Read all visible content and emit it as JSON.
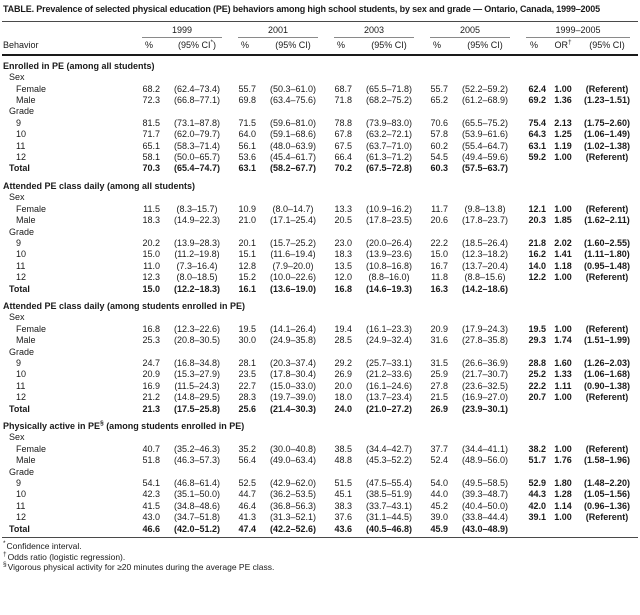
{
  "title": "TABLE. Prevalence of selected physical education (PE) behaviors among high school students, by sex and grade — Ontario, Canada, 1999–2005",
  "header": {
    "behavior_label": "Behavior",
    "year_groups": [
      {
        "label": "1999",
        "columns": [
          "%",
          "(95% CI*)"
        ]
      },
      {
        "label": "2001",
        "columns": [
          "%",
          "(95% CI)"
        ]
      },
      {
        "label": "2003",
        "columns": [
          "%",
          "(95% CI)"
        ]
      },
      {
        "label": "2005",
        "columns": [
          "%",
          "(95% CI)"
        ]
      },
      {
        "label": "1999–2005",
        "columns": [
          "%",
          "OR†",
          "(95% CI)"
        ]
      }
    ]
  },
  "sections": [
    {
      "heading": "Enrolled in PE (among all students)",
      "groups": [
        {
          "label": "Sex",
          "rows": [
            {
              "label": "Female",
              "cells": [
                "68.2",
                "(62.4–73.4)",
                "55.7",
                "(50.3–61.0)",
                "68.7",
                "(65.5–71.8)",
                "55.7",
                "(52.2–59.2)",
                "62.4",
                "1.00",
                "(Referent)"
              ]
            },
            {
              "label": "Male",
              "cells": [
                "72.3",
                "(66.8–77.1)",
                "69.8",
                "(63.4–75.6)",
                "71.8",
                "(68.2–75.2)",
                "65.2",
                "(61.2–68.9)",
                "69.2",
                "1.36",
                "(1.23–1.51)"
              ]
            }
          ]
        },
        {
          "label": "Grade",
          "rows": [
            {
              "label": "9",
              "cells": [
                "81.5",
                "(73.1–87.8)",
                "71.5",
                "(59.6–81.0)",
                "78.8",
                "(73.9–83.0)",
                "70.6",
                "(65.5–75.2)",
                "75.4",
                "2.13",
                "(1.75–2.60)"
              ]
            },
            {
              "label": "10",
              "cells": [
                "71.7",
                "(62.0–79.7)",
                "64.0",
                "(59.1–68.6)",
                "67.8",
                "(63.2–72.1)",
                "57.8",
                "(53.9–61.6)",
                "64.3",
                "1.25",
                "(1.06–1.49)"
              ]
            },
            {
              "label": "11",
              "cells": [
                "65.1",
                "(58.3–71.4)",
                "56.1",
                "(48.0–63.9)",
                "67.5",
                "(63.7–71.0)",
                "60.2",
                "(55.4–64.7)",
                "63.1",
                "1.19",
                "(1.02–1.38)"
              ]
            },
            {
              "label": "12",
              "cells": [
                "58.1",
                "(50.0–65.7)",
                "53.6",
                "(45.4–61.7)",
                "66.4",
                "(61.3–71.2)",
                "54.5",
                "(49.4–59.6)",
                "59.2",
                "1.00",
                "(Referent)"
              ]
            }
          ]
        }
      ],
      "total": {
        "label": "Total",
        "cells": [
          "70.3",
          "(65.4–74.7)",
          "63.1",
          "(58.2–67.7)",
          "70.2",
          "(67.5–72.8)",
          "60.3",
          "(57.5–63.7)",
          "",
          "",
          ""
        ]
      }
    },
    {
      "heading": "Attended PE class daily (among all students)",
      "groups": [
        {
          "label": "Sex",
          "rows": [
            {
              "label": "Female",
              "cells": [
                "11.5",
                "(8.3–15.7)",
                "10.9",
                "(8.0–14.7)",
                "13.3",
                "(10.9–16.2)",
                "11.7",
                "(9.8–13.8)",
                "12.1",
                "1.00",
                "(Referent)"
              ]
            },
            {
              "label": "Male",
              "cells": [
                "18.3",
                "(14.9–22.3)",
                "21.0",
                "(17.1–25.4)",
                "20.5",
                "(17.8–23.5)",
                "20.6",
                "(17.8–23.7)",
                "20.3",
                "1.85",
                "(1.62–2.11)"
              ]
            }
          ]
        },
        {
          "label": "Grade",
          "rows": [
            {
              "label": "9",
              "cells": [
                "20.2",
                "(13.9–28.3)",
                "20.1",
                "(15.7–25.2)",
                "23.0",
                "(20.0–26.4)",
                "22.2",
                "(18.5–26.4)",
                "21.8",
                "2.02",
                "(1.60–2.55)"
              ]
            },
            {
              "label": "10",
              "cells": [
                "15.0",
                "(11.2–19.8)",
                "15.1",
                "(11.6–19.4)",
                "18.3",
                "(13.9–23.6)",
                "15.0",
                "(12.3–18.2)",
                "16.2",
                "1.41",
                "(1.11–1.80)"
              ]
            },
            {
              "label": "11",
              "cells": [
                "11.0",
                "(7.3–16.4)",
                "12.8",
                "(7.9–20.0)",
                "13.5",
                "(10.8–16.8)",
                "16.7",
                "(13.7–20.4)",
                "14.0",
                "1.18",
                "(0.95–1.48)"
              ]
            },
            {
              "label": "12",
              "cells": [
                "12.3",
                "(8.0–18.5)",
                "15.2",
                "(10.0–22.6)",
                "12.0",
                "(8.8–16.0)",
                "11.8",
                "(8.8–15.6)",
                "12.2",
                "1.00",
                "(Referent)"
              ]
            }
          ]
        }
      ],
      "total": {
        "label": "Total",
        "cells": [
          "15.0",
          "(12.2–18.3)",
          "16.1",
          "(13.6–19.0)",
          "16.8",
          "(14.6–19.3)",
          "16.3",
          "(14.2–18.6)",
          "",
          "",
          ""
        ]
      }
    },
    {
      "heading": "Attended PE class daily (among students enrolled in PE)",
      "groups": [
        {
          "label": "Sex",
          "rows": [
            {
              "label": "Female",
              "cells": [
                "16.8",
                "(12.3–22.6)",
                "19.5",
                "(14.1–26.4)",
                "19.4",
                "(16.1–23.3)",
                "20.9",
                "(17.9–24.3)",
                "19.5",
                "1.00",
                "(Referent)"
              ]
            },
            {
              "label": "Male",
              "cells": [
                "25.3",
                "(20.8–30.5)",
                "30.0",
                "(24.9–35.8)",
                "28.5",
                "(24.9–32.4)",
                "31.6",
                "(27.8–35.8)",
                "29.3",
                "1.74",
                "(1.51–1.99)"
              ]
            }
          ]
        },
        {
          "label": "Grade",
          "rows": [
            {
              "label": "9",
              "cells": [
                "24.7",
                "(16.8–34.8)",
                "28.1",
                "(20.3–37.4)",
                "29.2",
                "(25.7–33.1)",
                "31.5",
                "(26.6–36.9)",
                "28.8",
                "1.60",
                "(1.26–2.03)"
              ]
            },
            {
              "label": "10",
              "cells": [
                "20.9",
                "(15.3–27.9)",
                "23.5",
                "(17.8–30.4)",
                "26.9",
                "(21.2–33.6)",
                "25.9",
                "(21.7–30.7)",
                "25.2",
                "1.33",
                "(1.06–1.68)"
              ]
            },
            {
              "label": "11",
              "cells": [
                "16.9",
                "(11.5–24.3)",
                "22.7",
                "(15.0–33.0)",
                "20.0",
                "(16.1–24.6)",
                "27.8",
                "(23.6–32.5)",
                "22.2",
                "1.11",
                "(0.90–1.38)"
              ]
            },
            {
              "label": "12",
              "cells": [
                "21.2",
                "(14.8–29.5)",
                "28.3",
                "(19.7–39.0)",
                "18.0",
                "(13.7–23.4)",
                "21.5",
                "(16.9–27.0)",
                "20.7",
                "1.00",
                "(Referent)"
              ]
            }
          ]
        }
      ],
      "total": {
        "label": "Total",
        "cells": [
          "21.3",
          "(17.5–25.8)",
          "25.6",
          "(21.4–30.3)",
          "24.0",
          "(21.0–27.2)",
          "26.9",
          "(23.9–30.1)",
          "",
          "",
          ""
        ]
      }
    },
    {
      "heading": "Physically active in PE§ (among students enrolled in PE)",
      "groups": [
        {
          "label": "Sex",
          "rows": [
            {
              "label": "Female",
              "cells": [
                "40.7",
                "(35.2–46.3)",
                "35.2",
                "(30.0–40.8)",
                "38.5",
                "(34.4–42.7)",
                "37.7",
                "(34.4–41.1)",
                "38.2",
                "1.00",
                "(Referent)"
              ]
            },
            {
              "label": "Male",
              "cells": [
                "51.8",
                "(46.3–57.3)",
                "56.4",
                "(49.0–63.4)",
                "48.8",
                "(45.3–52.2)",
                "52.4",
                "(48.9–56.0)",
                "51.7",
                "1.76",
                "(1.58–1.96)"
              ]
            }
          ]
        },
        {
          "label": "Grade",
          "rows": [
            {
              "label": "9",
              "cells": [
                "54.1",
                "(46.8–61.4)",
                "52.5",
                "(42.9–62.0)",
                "51.5",
                "(47.5–55.4)",
                "54.0",
                "(49.5–58.5)",
                "52.9",
                "1.80",
                "(1.48–2.20)"
              ]
            },
            {
              "label": "10",
              "cells": [
                "42.3",
                "(35.1–50.0)",
                "44.7",
                "(36.2–53.5)",
                "45.1",
                "(38.5–51.9)",
                "44.0",
                "(39.3–48.7)",
                "44.3",
                "1.28",
                "(1.05–1.56)"
              ]
            },
            {
              "label": "11",
              "cells": [
                "41.5",
                "(34.8–48.6)",
                "46.4",
                "(36.8–56.3)",
                "38.3",
                "(33.7–43.1)",
                "45.2",
                "(40.4–50.0)",
                "42.0",
                "1.14",
                "(0.96–1.36)"
              ]
            },
            {
              "label": "12",
              "cells": [
                "43.0",
                "(34.7–51.8)",
                "41.3",
                "(31.3–52.1)",
                "37.6",
                "(31.1–44.5)",
                "39.0",
                "(33.8–44.4)",
                "39.1",
                "1.00",
                "(Referent)"
              ]
            }
          ]
        }
      ],
      "total": {
        "label": "Total",
        "cells": [
          "46.6",
          "(42.0–51.2)",
          "47.4",
          "(42.2–52.6)",
          "43.6",
          "(40.5–46.8)",
          "45.9",
          "(43.0–48.9)",
          "",
          "",
          ""
        ]
      }
    }
  ],
  "footnotes": [
    {
      "marker": "*",
      "text": "Confidence interval."
    },
    {
      "marker": "†",
      "text": "Odds ratio (logistic regression)."
    },
    {
      "marker": "§",
      "text": "Vigorous physical activity for ≥20 minutes during the average PE class."
    }
  ]
}
